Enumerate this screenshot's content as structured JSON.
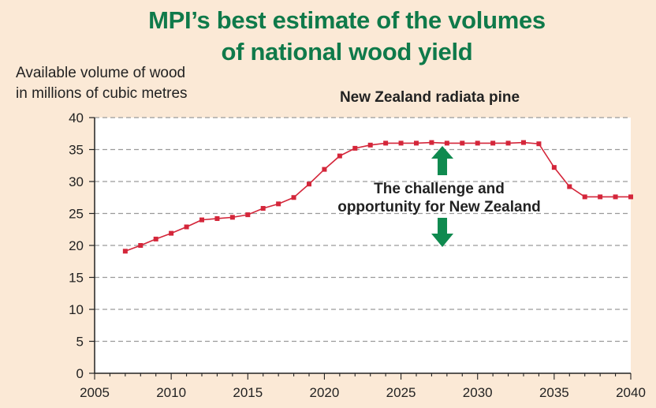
{
  "header": {
    "title_line1": "MPI’s best estimate of the volumes",
    "title_line2": "of national wood yield"
  },
  "chart_data": {
    "type": "line",
    "title": "New Zealand radiata pine",
    "ylabel_line1": "Available volume of wood",
    "ylabel_line2": "in millions of cubic metres",
    "xlim": [
      2005,
      2040
    ],
    "ylim": [
      0,
      40
    ],
    "x_ticks": [
      "2005",
      "2010",
      "2015",
      "2020",
      "2025",
      "2030",
      "2035",
      "2040"
    ],
    "y_ticks": [
      "0",
      "5",
      "10",
      "15",
      "20",
      "25",
      "30",
      "35",
      "40"
    ],
    "grid": true,
    "series": [
      {
        "color": "#d4263a",
        "x": [
          2007,
          2008,
          2009,
          2010,
          2011,
          2012,
          2013,
          2014,
          2015,
          2016,
          2017,
          2018,
          2019,
          2020,
          2021,
          2022,
          2023,
          2024,
          2025,
          2026,
          2027,
          2028,
          2029,
          2030,
          2031,
          2032,
          2033,
          2034,
          2035,
          2036,
          2037,
          2038,
          2039,
          2040
        ],
        "y": [
          19.1,
          20.0,
          21.0,
          21.9,
          22.9,
          24.0,
          24.2,
          24.4,
          24.8,
          25.8,
          26.5,
          27.5,
          29.6,
          31.9,
          34.0,
          35.2,
          35.7,
          36.0,
          36.0,
          36.0,
          36.1,
          36.0,
          36.0,
          36.0,
          36.0,
          36.0,
          36.1,
          35.9,
          32.2,
          29.2,
          27.6,
          27.6,
          27.6,
          27.6
        ]
      }
    ],
    "annotation": {
      "line1": "The challenge and",
      "line2": "opportunity for New Zealand",
      "arrow_color": "#0f8a4f"
    }
  }
}
